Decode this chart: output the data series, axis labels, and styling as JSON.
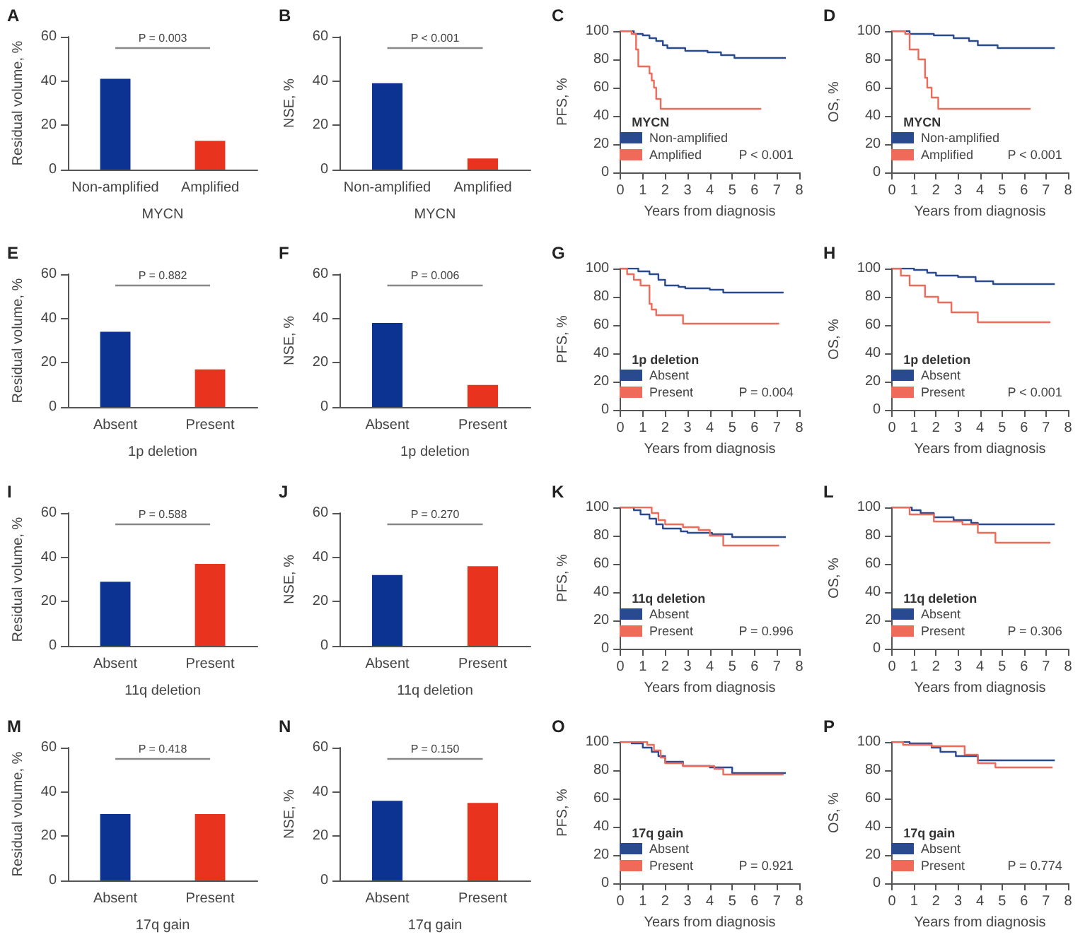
{
  "chart_data": [
    {
      "type": "bar",
      "title": "A",
      "ylabel": "Residual volume, %",
      "xlabel": "MYCN",
      "categories": [
        "Non-amplified",
        "Amplified"
      ],
      "values": [
        41,
        13
      ],
      "colors": [
        "#0c3391",
        "#e8331f"
      ],
      "ylim": [
        0,
        60
      ],
      "yticks": [
        0,
        20,
        40,
        60
      ],
      "annotations": [
        "P = 0.003"
      ]
    },
    {
      "type": "bar",
      "title": "B",
      "ylabel": "NSE, %",
      "xlabel": "MYCN",
      "categories": [
        "Non-amplified",
        "Amplified"
      ],
      "values": [
        39,
        5
      ],
      "colors": [
        "#0c3391",
        "#e8331f"
      ],
      "ylim": [
        0,
        60
      ],
      "yticks": [
        0,
        20,
        40,
        60
      ],
      "annotations": [
        "P < 0.001"
      ]
    },
    {
      "type": "step",
      "title": "C",
      "ylabel": "PFS, %",
      "xlabel": "Years from diagnosis",
      "legend_title": "MYCN",
      "legend": "bottom left",
      "xlim": [
        0,
        8
      ],
      "xticks": [
        0,
        1,
        2,
        3,
        4,
        5,
        6,
        7,
        8
      ],
      "ylim": [
        0,
        100
      ],
      "yticks": [
        0,
        20,
        40,
        60,
        80,
        100
      ],
      "annotations": [
        "P < 0.001"
      ],
      "series": [
        {
          "name": "Non-amplified",
          "color": "#2a4a8f",
          "x": [
            0,
            0.6,
            1.0,
            1.3,
            1.6,
            1.9,
            2.1,
            2.9,
            3.9,
            4.5,
            5.1,
            7.4
          ],
          "values": [
            100,
            98,
            97,
            95,
            93,
            90,
            88,
            86,
            85,
            83,
            81,
            81
          ]
        },
        {
          "name": "Amplified",
          "color": "#f06a5a",
          "x": [
            0,
            0.5,
            0.7,
            0.8,
            1.3,
            1.4,
            1.5,
            1.6,
            1.8,
            6.3
          ],
          "values": [
            100,
            98,
            87,
            75,
            70,
            65,
            60,
            52,
            45,
            45
          ]
        }
      ]
    },
    {
      "type": "step",
      "title": "D",
      "ylabel": "OS, %",
      "xlabel": "Years from diagnosis",
      "legend_title": "MYCN",
      "legend": "bottom left",
      "xlim": [
        0,
        8
      ],
      "xticks": [
        0,
        1,
        2,
        3,
        4,
        5,
        6,
        7,
        8
      ],
      "ylim": [
        0,
        100
      ],
      "yticks": [
        0,
        20,
        40,
        60,
        80,
        100
      ],
      "annotations": [
        "P < 0.001"
      ],
      "series": [
        {
          "name": "Non-amplified",
          "color": "#2a4a8f",
          "x": [
            0,
            0.8,
            1.9,
            2.8,
            3.5,
            3.9,
            4.8,
            7.4
          ],
          "values": [
            100,
            98,
            97,
            95,
            93,
            90,
            88,
            88
          ]
        },
        {
          "name": "Amplified",
          "color": "#f06a5a",
          "x": [
            0,
            0.6,
            0.8,
            1.2,
            1.5,
            1.6,
            1.8,
            2.1,
            6.3
          ],
          "values": [
            100,
            98,
            87,
            80,
            67,
            60,
            53,
            45,
            45
          ]
        }
      ]
    },
    {
      "type": "bar",
      "title": "E",
      "ylabel": "Residual volume, %",
      "xlabel": "1p deletion",
      "categories": [
        "Absent",
        "Present"
      ],
      "values": [
        34,
        17
      ],
      "colors": [
        "#0c3391",
        "#e8331f"
      ],
      "ylim": [
        0,
        60
      ],
      "yticks": [
        0,
        20,
        40,
        60
      ],
      "annotations": [
        "P = 0.882"
      ]
    },
    {
      "type": "bar",
      "title": "F",
      "ylabel": "NSE, %",
      "xlabel": "1p deletion",
      "categories": [
        "Absent",
        "Present"
      ],
      "values": [
        38,
        10
      ],
      "colors": [
        "#0c3391",
        "#e8331f"
      ],
      "ylim": [
        0,
        60
      ],
      "yticks": [
        0,
        20,
        40,
        60
      ],
      "annotations": [
        "P = 0.006"
      ]
    },
    {
      "type": "step",
      "title": "G",
      "ylabel": "PFS, %",
      "xlabel": "Years from diagnosis",
      "legend_title": "1p deletion",
      "legend": "bottom left",
      "xlim": [
        0,
        8
      ],
      "xticks": [
        0,
        1,
        2,
        3,
        4,
        5,
        6,
        7,
        8
      ],
      "ylim": [
        0,
        100
      ],
      "yticks": [
        0,
        20,
        40,
        60,
        80,
        100
      ],
      "annotations": [
        "P = 0.004"
      ],
      "series": [
        {
          "name": "Absent",
          "color": "#2a4a8f",
          "x": [
            0,
            0.8,
            1.3,
            1.7,
            2.0,
            2.6,
            2.9,
            4.0,
            4.6,
            7.3
          ],
          "values": [
            100,
            98,
            96,
            92,
            88,
            87,
            86,
            85,
            83,
            83
          ]
        },
        {
          "name": "Present",
          "color": "#f06a5a",
          "x": [
            0,
            0.3,
            0.6,
            0.9,
            1.3,
            1.4,
            1.6,
            2.8,
            7.1
          ],
          "values": [
            100,
            96,
            92,
            88,
            75,
            71,
            67,
            61,
            61
          ]
        }
      ]
    },
    {
      "type": "step",
      "title": "H",
      "ylabel": "OS, %",
      "xlabel": "Years from diagnosis",
      "legend_title": "1p deletion",
      "legend": "bottom left",
      "xlim": [
        0,
        8
      ],
      "xticks": [
        0,
        1,
        2,
        3,
        4,
        5,
        6,
        7,
        8
      ],
      "ylim": [
        0,
        100
      ],
      "yticks": [
        0,
        20,
        40,
        60,
        80,
        100
      ],
      "annotations": [
        "P < 0.001"
      ],
      "series": [
        {
          "name": "Absent",
          "color": "#2a4a8f",
          "x": [
            0,
            1.0,
            1.6,
            2.0,
            3.0,
            3.8,
            4.6,
            7.4
          ],
          "values": [
            100,
            99,
            97,
            95,
            94,
            91,
            89,
            89
          ]
        },
        {
          "name": "Present",
          "color": "#f06a5a",
          "x": [
            0,
            0.4,
            0.8,
            1.5,
            2.1,
            2.7,
            3.9,
            7.2
          ],
          "values": [
            100,
            95,
            88,
            80,
            76,
            69,
            62,
            62
          ]
        }
      ]
    },
    {
      "type": "bar",
      "title": "I",
      "ylabel": "Residual volume, %",
      "xlabel": "11q deletion",
      "categories": [
        "Absent",
        "Present"
      ],
      "values": [
        29,
        37
      ],
      "colors": [
        "#0c3391",
        "#e8331f"
      ],
      "ylim": [
        0,
        60
      ],
      "yticks": [
        0,
        20,
        40,
        60
      ],
      "annotations": [
        "P = 0.588"
      ]
    },
    {
      "type": "bar",
      "title": "J",
      "ylabel": "NSE, %",
      "xlabel": "11q deletion",
      "categories": [
        "Absent",
        "Present"
      ],
      "values": [
        32,
        36
      ],
      "colors": [
        "#0c3391",
        "#e8331f"
      ],
      "ylim": [
        0,
        60
      ],
      "yticks": [
        0,
        20,
        40,
        60
      ],
      "annotations": [
        "P = 0.270"
      ]
    },
    {
      "type": "step",
      "title": "K",
      "ylabel": "PFS, %",
      "xlabel": "Years from diagnosis",
      "legend_title": "11q deletion",
      "legend": "bottom left",
      "xlim": [
        0,
        8
      ],
      "xticks": [
        0,
        1,
        2,
        3,
        4,
        5,
        6,
        7,
        8
      ],
      "ylim": [
        0,
        100
      ],
      "yticks": [
        0,
        20,
        40,
        60,
        80,
        100
      ],
      "annotations": [
        "P = 0.996"
      ],
      "series": [
        {
          "name": "Absent",
          "color": "#2a4a8f",
          "x": [
            0,
            0.6,
            0.9,
            1.3,
            1.6,
            1.9,
            2.7,
            3.0,
            4.1,
            5.0,
            7.4
          ],
          "values": [
            100,
            98,
            95,
            92,
            88,
            85,
            83,
            82,
            81,
            79,
            79
          ]
        },
        {
          "name": "Present",
          "color": "#f06a5a",
          "x": [
            0,
            1.4,
            1.7,
            2.0,
            2.8,
            3.5,
            4.0,
            4.6,
            7.1
          ],
          "values": [
            100,
            96,
            91,
            88,
            86,
            84,
            80,
            73,
            73
          ]
        }
      ]
    },
    {
      "type": "step",
      "title": "L",
      "ylabel": "OS, %",
      "xlabel": "Years from diagnosis",
      "legend_title": "11q deletion",
      "legend": "bottom left",
      "xlim": [
        0,
        8
      ],
      "xticks": [
        0,
        1,
        2,
        3,
        4,
        5,
        6,
        7,
        8
      ],
      "ylim": [
        0,
        100
      ],
      "yticks": [
        0,
        20,
        40,
        60,
        80,
        100
      ],
      "annotations": [
        "P = 0.306"
      ],
      "series": [
        {
          "name": "Absent",
          "color": "#2a4a8f",
          "x": [
            0,
            0.9,
            1.3,
            1.9,
            2.8,
            3.6,
            3.9,
            7.4
          ],
          "values": [
            100,
            98,
            96,
            93,
            91,
            89,
            88,
            88
          ]
        },
        {
          "name": "Present",
          "color": "#f06a5a",
          "x": [
            0,
            0.8,
            1.9,
            3.2,
            3.9,
            4.7,
            7.2
          ],
          "values": [
            100,
            95,
            90,
            88,
            82,
            75,
            75
          ]
        }
      ]
    },
    {
      "type": "bar",
      "title": "M",
      "ylabel": "Residual volume, %",
      "xlabel": "17q gain",
      "categories": [
        "Absent",
        "Present"
      ],
      "values": [
        30,
        30
      ],
      "colors": [
        "#0c3391",
        "#e8331f"
      ],
      "ylim": [
        0,
        60
      ],
      "yticks": [
        0,
        20,
        40,
        60
      ],
      "annotations": [
        "P = 0.418"
      ]
    },
    {
      "type": "bar",
      "title": "N",
      "ylabel": "NSE, %",
      "xlabel": "17q gain",
      "categories": [
        "Absent",
        "Present"
      ],
      "values": [
        36,
        35
      ],
      "colors": [
        "#0c3391",
        "#e8331f"
      ],
      "ylim": [
        0,
        60
      ],
      "yticks": [
        0,
        20,
        40,
        60
      ],
      "annotations": [
        "P = 0.150"
      ]
    },
    {
      "type": "step",
      "title": "O",
      "ylabel": "PFS, %",
      "xlabel": "Years from diagnosis",
      "legend_title": "17q gain",
      "legend": "bottom left",
      "xlim": [
        0,
        8
      ],
      "xticks": [
        0,
        1,
        2,
        3,
        4,
        5,
        6,
        7,
        8
      ],
      "ylim": [
        0,
        100
      ],
      "yticks": [
        0,
        20,
        40,
        60,
        80,
        100
      ],
      "annotations": [
        "P = 0.921"
      ],
      "series": [
        {
          "name": "Absent",
          "color": "#2a4a8f",
          "x": [
            0,
            0.5,
            1.0,
            1.4,
            1.7,
            2.0,
            2.8,
            4.0,
            5.0,
            7.4
          ],
          "values": [
            100,
            99,
            96,
            93,
            90,
            86,
            83,
            82,
            78,
            78
          ]
        },
        {
          "name": "Present",
          "color": "#f06a5a",
          "x": [
            0,
            1.2,
            1.5,
            1.8,
            2.0,
            2.8,
            4.2,
            4.6,
            7.3
          ],
          "values": [
            100,
            98,
            94,
            89,
            85,
            83,
            81,
            77,
            77
          ]
        }
      ]
    },
    {
      "type": "step",
      "title": "P",
      "ylabel": "OS, %",
      "xlabel": "Years from diagnosis",
      "legend_title": "17q gain",
      "legend": "bottom left",
      "xlim": [
        0,
        8
      ],
      "xticks": [
        0,
        1,
        2,
        3,
        4,
        5,
        6,
        7,
        8
      ],
      "ylim": [
        0,
        100
      ],
      "yticks": [
        0,
        20,
        40,
        60,
        80,
        100
      ],
      "annotations": [
        "P = 0.774"
      ],
      "series": [
        {
          "name": "Absent",
          "color": "#2a4a8f",
          "x": [
            0,
            0.8,
            1.8,
            2.2,
            2.9,
            3.9,
            7.4
          ],
          "values": [
            100,
            99,
            96,
            93,
            90,
            87,
            87
          ]
        },
        {
          "name": "Present",
          "color": "#f06a5a",
          "x": [
            0,
            0.5,
            1.8,
            3.3,
            3.9,
            4.7,
            7.3
          ],
          "values": [
            100,
            98,
            97,
            91,
            85,
            82,
            82
          ]
        }
      ]
    }
  ]
}
